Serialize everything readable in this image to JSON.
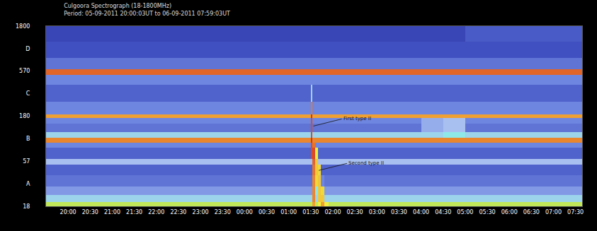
{
  "chart_data": {
    "type": "heatmap",
    "title": "Culgoora Spectrograph (18-1800MHz)",
    "subtitle": "Period: 05-09-2011 20:00:03UT to 06-09-2011 07:59:03UT",
    "x_edges": [
      -0.5,
      1.5,
      3,
      4.5,
      5.5,
      5.54,
      5.6,
      5.66,
      5.72,
      5.8,
      5.9,
      6.0,
      8.0,
      8.5,
      9.0,
      10.5,
      11.65
    ],
    "y_edges": [
      18,
      20,
      24,
      30,
      40,
      52,
      60,
      80,
      92,
      104,
      120,
      150,
      172,
      190,
      260,
      400,
      520,
      600,
      800,
      1200,
      1800
    ],
    "z": [
      [
        0.7,
        0.7,
        0.7,
        0.7,
        0.7,
        0.85,
        0.7,
        0.75,
        0.85,
        0.75,
        0.7,
        0.7,
        0.7,
        0.7,
        0.7,
        0.7
      ],
      [
        0.5,
        0.5,
        0.5,
        0.5,
        0.5,
        0.88,
        0.5,
        0.8,
        0.8,
        0.5,
        0.5,
        0.5,
        0.5,
        0.5,
        0.5,
        0.5
      ],
      [
        0.35,
        0.35,
        0.35,
        0.35,
        0.35,
        0.88,
        0.55,
        0.8,
        0.78,
        0.35,
        0.35,
        0.35,
        0.35,
        0.35,
        0.35,
        0.35
      ],
      [
        0.25,
        0.25,
        0.25,
        0.25,
        0.25,
        0.88,
        0.78,
        0.8,
        0.3,
        0.25,
        0.25,
        0.25,
        0.25,
        0.25,
        0.25,
        0.25
      ],
      [
        0.2,
        0.2,
        0.2,
        0.2,
        0.2,
        0.9,
        0.8,
        0.78,
        0.2,
        0.2,
        0.2,
        0.2,
        0.2,
        0.2,
        0.2,
        0.2
      ],
      [
        0.45,
        0.45,
        0.45,
        0.45,
        0.45,
        0.92,
        0.8,
        0.45,
        0.45,
        0.45,
        0.45,
        0.45,
        0.45,
        0.45,
        0.45,
        0.45
      ],
      [
        0.2,
        0.2,
        0.2,
        0.2,
        0.95,
        0.95,
        0.75,
        0.2,
        0.2,
        0.2,
        0.2,
        0.2,
        0.2,
        0.2,
        0.2,
        0.2
      ],
      [
        0.3,
        0.3,
        0.3,
        0.3,
        0.95,
        0.9,
        0.3,
        0.3,
        0.3,
        0.3,
        0.3,
        0.3,
        0.3,
        0.3,
        0.3,
        0.3
      ],
      [
        0.88,
        0.88,
        0.88,
        0.88,
        0.98,
        0.88,
        0.88,
        0.88,
        0.88,
        0.88,
        0.88,
        0.88,
        0.88,
        0.88,
        0.88,
        0.88
      ],
      [
        0.5,
        0.5,
        0.5,
        0.5,
        0.95,
        0.5,
        0.5,
        0.5,
        0.5,
        0.5,
        0.5,
        0.5,
        0.5,
        0.55,
        0.5,
        0.5
      ],
      [
        0.25,
        0.25,
        0.25,
        0.25,
        0.95,
        0.25,
        0.25,
        0.25,
        0.25,
        0.25,
        0.25,
        0.25,
        0.4,
        0.45,
        0.25,
        0.25
      ],
      [
        0.3,
        0.3,
        0.3,
        0.3,
        0.95,
        0.3,
        0.3,
        0.3,
        0.3,
        0.3,
        0.3,
        0.3,
        0.4,
        0.45,
        0.3,
        0.3
      ],
      [
        0.85,
        0.85,
        0.85,
        0.85,
        0.98,
        0.85,
        0.85,
        0.85,
        0.85,
        0.85,
        0.85,
        0.85,
        0.85,
        0.85,
        0.85,
        0.85
      ],
      [
        0.3,
        0.3,
        0.3,
        0.3,
        0.9,
        0.3,
        0.3,
        0.3,
        0.3,
        0.3,
        0.3,
        0.3,
        0.3,
        0.3,
        0.3,
        0.3
      ],
      [
        0.2,
        0.2,
        0.2,
        0.2,
        0.5,
        0.2,
        0.2,
        0.2,
        0.2,
        0.2,
        0.2,
        0.2,
        0.2,
        0.2,
        0.2,
        0.2
      ],
      [
        0.3,
        0.3,
        0.3,
        0.3,
        0.3,
        0.3,
        0.3,
        0.3,
        0.3,
        0.3,
        0.3,
        0.3,
        0.3,
        0.3,
        0.3,
        0.3
      ],
      [
        0.92,
        0.92,
        0.92,
        0.92,
        0.92,
        0.92,
        0.92,
        0.92,
        0.92,
        0.92,
        0.92,
        0.92,
        0.92,
        0.92,
        0.92,
        0.92
      ],
      [
        0.25,
        0.25,
        0.25,
        0.25,
        0.25,
        0.25,
        0.25,
        0.25,
        0.25,
        0.25,
        0.25,
        0.25,
        0.25,
        0.25,
        0.25,
        0.25
      ],
      [
        0.15,
        0.15,
        0.15,
        0.15,
        0.15,
        0.15,
        0.15,
        0.15,
        0.15,
        0.15,
        0.15,
        0.15,
        0.15,
        0.15,
        0.15,
        0.15
      ],
      [
        0.12,
        0.12,
        0.12,
        0.12,
        0.12,
        0.12,
        0.12,
        0.12,
        0.12,
        0.12,
        0.12,
        0.12,
        0.12,
        0.12,
        0.18,
        0.18
      ]
    ],
    "z_range": [
      0,
      1
    ],
    "xlim": [
      -0.5,
      11.65
    ],
    "xticks": [
      {
        "value": 0,
        "label": "20:00"
      },
      {
        "value": 0.5,
        "label": "20:30"
      },
      {
        "value": 1,
        "label": "21:00"
      },
      {
        "value": 1.5,
        "label": "21:30"
      },
      {
        "value": 2,
        "label": "22:00"
      },
      {
        "value": 2.5,
        "label": "22:30"
      },
      {
        "value": 3,
        "label": "23:00"
      },
      {
        "value": 3.5,
        "label": "23:30"
      },
      {
        "value": 4,
        "label": "00:00"
      },
      {
        "value": 4.5,
        "label": "00:30"
      },
      {
        "value": 5,
        "label": "01:00"
      },
      {
        "value": 5.5,
        "label": "01:30"
      },
      {
        "value": 6,
        "label": "02:00"
      },
      {
        "value": 6.5,
        "label": "02:30"
      },
      {
        "value": 7,
        "label": "03:00"
      },
      {
        "value": 7.5,
        "label": "03:30"
      },
      {
        "value": 8,
        "label": "04:00"
      },
      {
        "value": 8.5,
        "label": "04:30"
      },
      {
        "value": 9,
        "label": "05:00"
      },
      {
        "value": 9.5,
        "label": "05:30"
      },
      {
        "value": 10,
        "label": "06:00"
      },
      {
        "value": 10.5,
        "label": "06:30"
      },
      {
        "value": 11,
        "label": "07:00"
      },
      {
        "value": 11.5,
        "label": "07:30"
      }
    ],
    "ylim": [
      18,
      1800
    ],
    "yticks": [
      1800,
      {
        "value": 1013,
        "label": "D"
      },
      570,
      {
        "value": 320,
        "label": "C"
      },
      180,
      {
        "value": 101,
        "label": "B"
      },
      57,
      {
        "value": 32,
        "label": "A"
      },
      18
    ],
    "log": "y",
    "grid": false,
    "annotations": [
      {
        "text": "First type II",
        "x": 5.56,
        "y": 140
      },
      {
        "text": "Second type II",
        "x": 5.68,
        "y": 45
      }
    ]
  }
}
